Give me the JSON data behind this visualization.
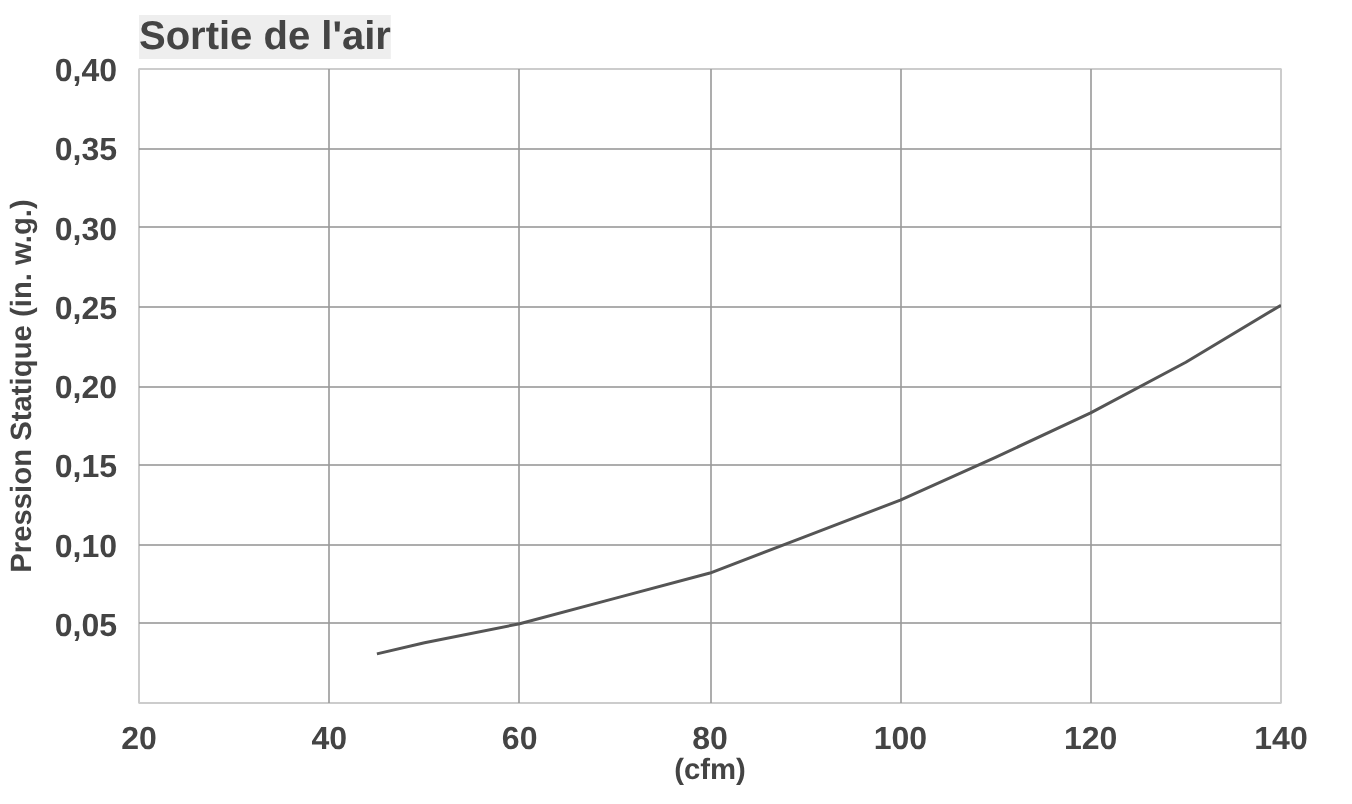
{
  "chart_data": {
    "type": "line",
    "title": "Sortie de l'air",
    "xlabel": "(cfm)",
    "ylabel": "Pression Statique (in. w.g.)",
    "x": [
      45,
      50,
      60,
      70,
      80,
      90,
      100,
      110,
      120,
      130,
      140
    ],
    "series": [
      {
        "color": "#555555",
        "values": [
          0.031,
          0.038,
          0.05,
          0.066,
          0.082,
          0.105,
          0.128,
          0.155,
          0.183,
          0.215,
          0.251
        ]
      }
    ],
    "xlim": [
      20,
      140
    ],
    "xticks": [
      20,
      40,
      60,
      80,
      100,
      120,
      140
    ],
    "ylim": [
      0,
      0.4
    ],
    "yticks": [
      {
        "value": 0,
        "label": null
      },
      {
        "value": 0.05,
        "label": "0,05"
      },
      {
        "value": 0.1,
        "label": "0,10"
      },
      {
        "value": 0.15,
        "label": "0,15"
      },
      {
        "value": 0.2,
        "label": "0,20"
      },
      {
        "value": 0.25,
        "label": "0,25"
      },
      {
        "value": 0.3,
        "label": "0,30"
      },
      {
        "value": 0.35,
        "label": "0,35"
      },
      {
        "value": 0.4,
        "label": "0,40"
      }
    ],
    "grid": true,
    "marker": "none",
    "line_style": "solid"
  }
}
